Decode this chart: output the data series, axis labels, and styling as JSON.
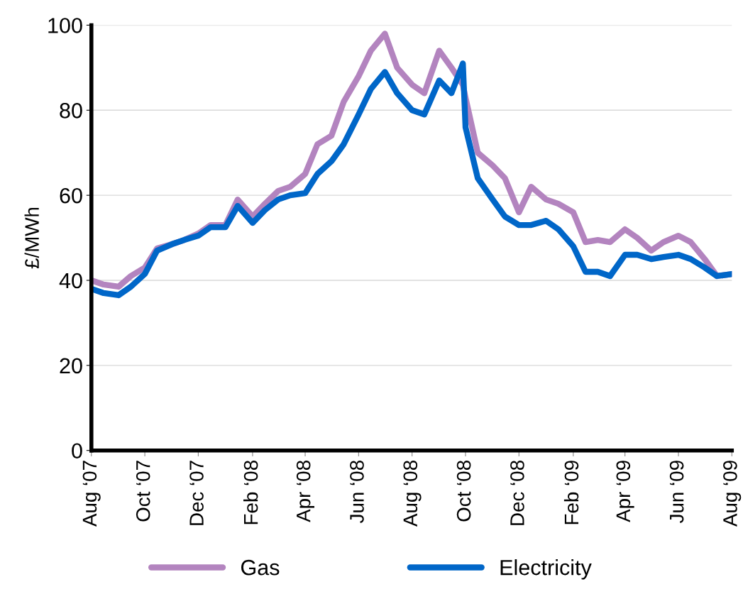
{
  "chart_data": {
    "type": "line",
    "ylabel": "£/MWh",
    "ylim": [
      0,
      100
    ],
    "yticks": [
      0,
      20,
      40,
      60,
      80,
      100
    ],
    "grid": "y",
    "legend": "bottom",
    "line_style": "solid",
    "marker": "none",
    "xlim": [
      "2007-08-01",
      "2009-08-01"
    ],
    "xticks": [
      {
        "value": "2007-08-01",
        "label": "Aug ‘07"
      },
      {
        "value": "2007-10-01",
        "label": "Oct ‘07"
      },
      {
        "value": "2007-12-01",
        "label": "Dec ‘07"
      },
      {
        "value": "2008-02-01",
        "label": "Feb ‘08"
      },
      {
        "value": "2008-04-01",
        "label": "Apr ‘08"
      },
      {
        "value": "2008-06-01",
        "label": "Jun ‘08"
      },
      {
        "value": "2008-08-01",
        "label": "Aug ‘08"
      },
      {
        "value": "2008-10-01",
        "label": "Oct ‘08"
      },
      {
        "value": "2008-12-01",
        "label": "Dec ‘08"
      },
      {
        "value": "2009-02-01",
        "label": "Feb ‘09"
      },
      {
        "value": "2009-04-01",
        "label": "Apr ‘09"
      },
      {
        "value": "2009-06-01",
        "label": "Jun ‘09"
      },
      {
        "value": "2009-08-01",
        "label": "Aug ‘09"
      }
    ],
    "x": [
      "2007-08-01",
      "2007-08-15",
      "2007-09-01",
      "2007-09-15",
      "2007-10-01",
      "2007-10-15",
      "2007-11-01",
      "2007-11-15",
      "2007-12-01",
      "2007-12-15",
      "2008-01-01",
      "2008-01-15",
      "2008-02-01",
      "2008-02-15",
      "2008-03-01",
      "2008-03-15",
      "2008-04-01",
      "2008-04-15",
      "2008-05-01",
      "2008-05-15",
      "2008-06-01",
      "2008-06-15",
      "2008-07-01",
      "2008-07-15",
      "2008-08-01",
      "2008-08-15",
      "2008-09-01",
      "2008-09-15",
      "2008-09-28",
      "2008-10-01",
      "2008-10-15",
      "2008-11-01",
      "2008-11-15",
      "2008-12-01",
      "2008-12-15",
      "2009-01-01",
      "2009-01-15",
      "2009-02-01",
      "2009-02-15",
      "2009-03-01",
      "2009-03-15",
      "2009-04-01",
      "2009-04-15",
      "2009-05-01",
      "2009-05-15",
      "2009-06-01",
      "2009-06-15",
      "2009-07-01",
      "2009-07-15",
      "2009-08-01"
    ],
    "series": [
      {
        "name": "Gas",
        "color": "#b384bf",
        "values": [
          40,
          39,
          38.5,
          41,
          43,
          47.5,
          48.5,
          49.5,
          51,
          53,
          53,
          59,
          55,
          58,
          61,
          62,
          65,
          72,
          74,
          82,
          88,
          94,
          98,
          90,
          86,
          84,
          94,
          90,
          86,
          83,
          70,
          67,
          64,
          56,
          62,
          59,
          58,
          56,
          49,
          49.5,
          49,
          52,
          50,
          47,
          49,
          50.5,
          49,
          45,
          41,
          41.5
        ]
      },
      {
        "name": "Electricity",
        "color": "#0066c8",
        "values": [
          38,
          37,
          36.5,
          38.5,
          41.5,
          47,
          48.5,
          49.5,
          50.5,
          52.5,
          52.5,
          57.5,
          53.5,
          56.5,
          59,
          60,
          60.5,
          65,
          68,
          72,
          79,
          85,
          89,
          84,
          80,
          79,
          87,
          84,
          91,
          76,
          64,
          59,
          55,
          53,
          53,
          54,
          52,
          48,
          42,
          42,
          41,
          46,
          46,
          45,
          45.5,
          46,
          45,
          43,
          41,
          41.5
        ]
      }
    ]
  }
}
